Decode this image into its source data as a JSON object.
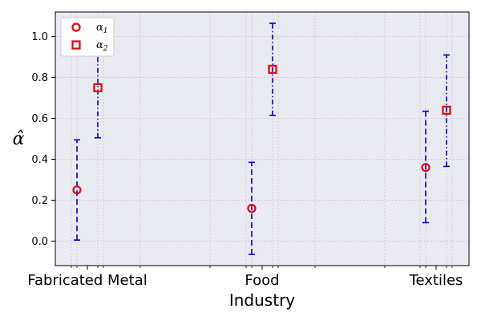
{
  "chart_data": {
    "type": "scatter",
    "xlabel": "Industry",
    "ylabel": "α̂",
    "categories": [
      "Fabricated Metal",
      "Food",
      "Textiles"
    ],
    "ylim": [
      -0.12,
      1.12
    ],
    "yticks": [
      "0.0",
      "0.2",
      "0.4",
      "0.6",
      "0.8",
      "1.0"
    ],
    "grid": true,
    "legend_position": "top-left",
    "series": [
      {
        "name": "α1",
        "legend_base": "α",
        "legend_sub": "1",
        "marker": "circle",
        "marker_color": "#e8000b",
        "error_color": "#0000cc",
        "error_style": "dashed",
        "values": [
          0.25,
          0.16,
          0.36
        ],
        "lower": [
          0.005,
          -0.065,
          0.09
        ],
        "upper": [
          0.495,
          0.385,
          0.635
        ]
      },
      {
        "name": "α2",
        "legend_base": "α",
        "legend_sub": "2",
        "marker": "square",
        "marker_color": "#e8000b",
        "error_color": "#0000cc",
        "error_style": "dashdot",
        "values": [
          0.75,
          0.84,
          0.64
        ],
        "lower": [
          0.505,
          0.615,
          0.365
        ],
        "upper": [
          0.995,
          1.065,
          0.91
        ]
      }
    ],
    "colors": {
      "background": "#eaeaf2",
      "grid": "#c8c8c8"
    }
  }
}
